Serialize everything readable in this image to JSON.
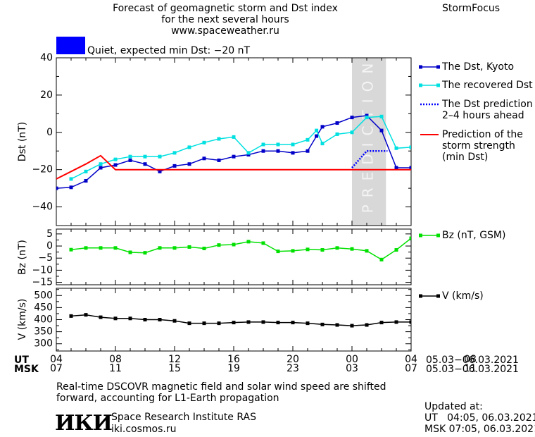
{
  "header": {
    "title_lines": [
      "Forecast of geomagnetic storm and Dst index",
      "for the next several hours",
      "www.spaceweather.ru"
    ],
    "brand": "StormFocus"
  },
  "status": {
    "text": "Quiet, expected min Dst: −20 nT",
    "color": "#0000ff"
  },
  "chart_data": [
    {
      "type": "line",
      "ylabel": "Dst (nT)",
      "ylim": [
        -50,
        40
      ],
      "yticks": [
        40,
        20,
        0,
        -20,
        -40
      ],
      "x_hours": [
        4,
        28
      ],
      "prediction_band": {
        "x": [
          24,
          26.3
        ],
        "label": "PREDICTION",
        "color": "#d8d8d8"
      },
      "series": [
        {
          "name": "The Dst, Kyoto",
          "color": "#0000c8",
          "marker": "square",
          "x": [
            4,
            5,
            6,
            7,
            8,
            9,
            10,
            11,
            12,
            13,
            14,
            15,
            16,
            17,
            18,
            19,
            20,
            21,
            21.6,
            22,
            23,
            24,
            25,
            26,
            27,
            28,
            28.8
          ],
          "y": [
            -30,
            -29.5,
            -26,
            -19,
            -17.5,
            -15,
            -17,
            -21,
            -18,
            -17,
            -14,
            -15,
            -13,
            -12,
            -10,
            -10,
            -11,
            -10,
            -2,
            3,
            5,
            8,
            9,
            1,
            -19,
            -19,
            -19
          ]
        },
        {
          "name": "The recovered Dst",
          "color": "#00e0e0",
          "marker": "square",
          "x": [
            5,
            6,
            7,
            8,
            9,
            10,
            11,
            12,
            13,
            14,
            15,
            16,
            17,
            18,
            19,
            20,
            21,
            21.6,
            22,
            23,
            24,
            25,
            26,
            27,
            28
          ],
          "y": [
            -25,
            -21,
            -17,
            -14.5,
            -13,
            -13,
            -13,
            -11,
            -8,
            -5.5,
            -3.5,
            -2.5,
            -11,
            -6.5,
            -6.5,
            -6.5,
            -4,
            1,
            -6,
            -1,
            0,
            8,
            8.5,
            -8.5,
            -8
          ]
        },
        {
          "name": "The Dst prediction\n2–4 hours ahead",
          "color": "#0000ff",
          "style": "dotted",
          "x": [
            24,
            25,
            26.4
          ],
          "y": [
            -19,
            -10,
            -10
          ]
        },
        {
          "name": "Prediction of the\nstorm strength\n(min Dst)",
          "color": "#ff0000",
          "style": "solid",
          "x": [
            4,
            5,
            6,
            7,
            8,
            9,
            10,
            11,
            12,
            13,
            14,
            15,
            16,
            17,
            18,
            19,
            20,
            21,
            22,
            23,
            24,
            25,
            26,
            27,
            28
          ],
          "y": [
            -25,
            -21,
            -17,
            -12.5,
            -20,
            -20,
            -20,
            -20,
            -20,
            -20,
            -20,
            -20,
            -20,
            -20,
            -20,
            -20,
            -20,
            -20,
            -20,
            -20,
            -20,
            -20,
            -20,
            -20,
            -20
          ]
        }
      ]
    },
    {
      "type": "line",
      "ylabel": "Bz (nT)",
      "ylim": [
        -16,
        7
      ],
      "yticks": [
        5,
        0,
        -5,
        -10,
        -15
      ],
      "series": [
        {
          "name": "Bz (nT, GSM)",
          "color": "#00e000",
          "marker": "square",
          "x": [
            5,
            6,
            7,
            8,
            9,
            10,
            11,
            12,
            13,
            14,
            15,
            16,
            17,
            18,
            19,
            20,
            21,
            22,
            23,
            24,
            25,
            26,
            27,
            28
          ],
          "y": [
            -1.5,
            -0.8,
            -0.8,
            -0.8,
            -2.6,
            -2.8,
            -0.8,
            -0.8,
            -0.4,
            -1,
            0.4,
            0.6,
            1.8,
            1.2,
            -2.2,
            -2,
            -1.4,
            -1.6,
            -0.8,
            -1.2,
            -2,
            -5.6,
            -1.6,
            3.2
          ]
        }
      ]
    },
    {
      "type": "line",
      "ylabel": "V (km/s)",
      "ylim": [
        270,
        530
      ],
      "yticks": [
        500,
        450,
        400,
        350,
        300
      ],
      "series": [
        {
          "name": "V (km/s)",
          "color": "#000000",
          "marker": "square",
          "x": [
            5,
            6,
            7,
            8,
            9,
            10,
            11,
            12,
            13,
            14,
            15,
            16,
            17,
            18,
            19,
            20,
            21,
            22,
            23,
            24,
            25,
            26,
            27,
            28
          ],
          "y": [
            415,
            420,
            410,
            405,
            405,
            400,
            400,
            395,
            385,
            385,
            385,
            388,
            390,
            390,
            388,
            388,
            385,
            380,
            378,
            375,
            378,
            388,
            390,
            390
          ]
        }
      ]
    }
  ],
  "axis": {
    "ut_label": "UT",
    "msk_label": "MSK",
    "ut_ticks": [
      "04",
      "08",
      "12",
      "16",
      "20",
      "00",
      "04",
      "08"
    ],
    "msk_ticks": [
      "07",
      "11",
      "15",
      "19",
      "23",
      "03",
      "07",
      "11"
    ],
    "date_range": "05.03−06.03.2021"
  },
  "footer": {
    "note": [
      "Real-time DSCOVR magnetic field and solar wind speed are shifted",
      "forward, accounting for L1-Earth propagation"
    ],
    "logo_text": "ИКИ",
    "institute": "Space Research Institute RAS",
    "site": "iki.cosmos.ru",
    "updated_label": "Updated at:",
    "updated_ut": "UT   04:05, 06.03.2021",
    "updated_msk": "MSK 07:05, 06.03.2021"
  }
}
